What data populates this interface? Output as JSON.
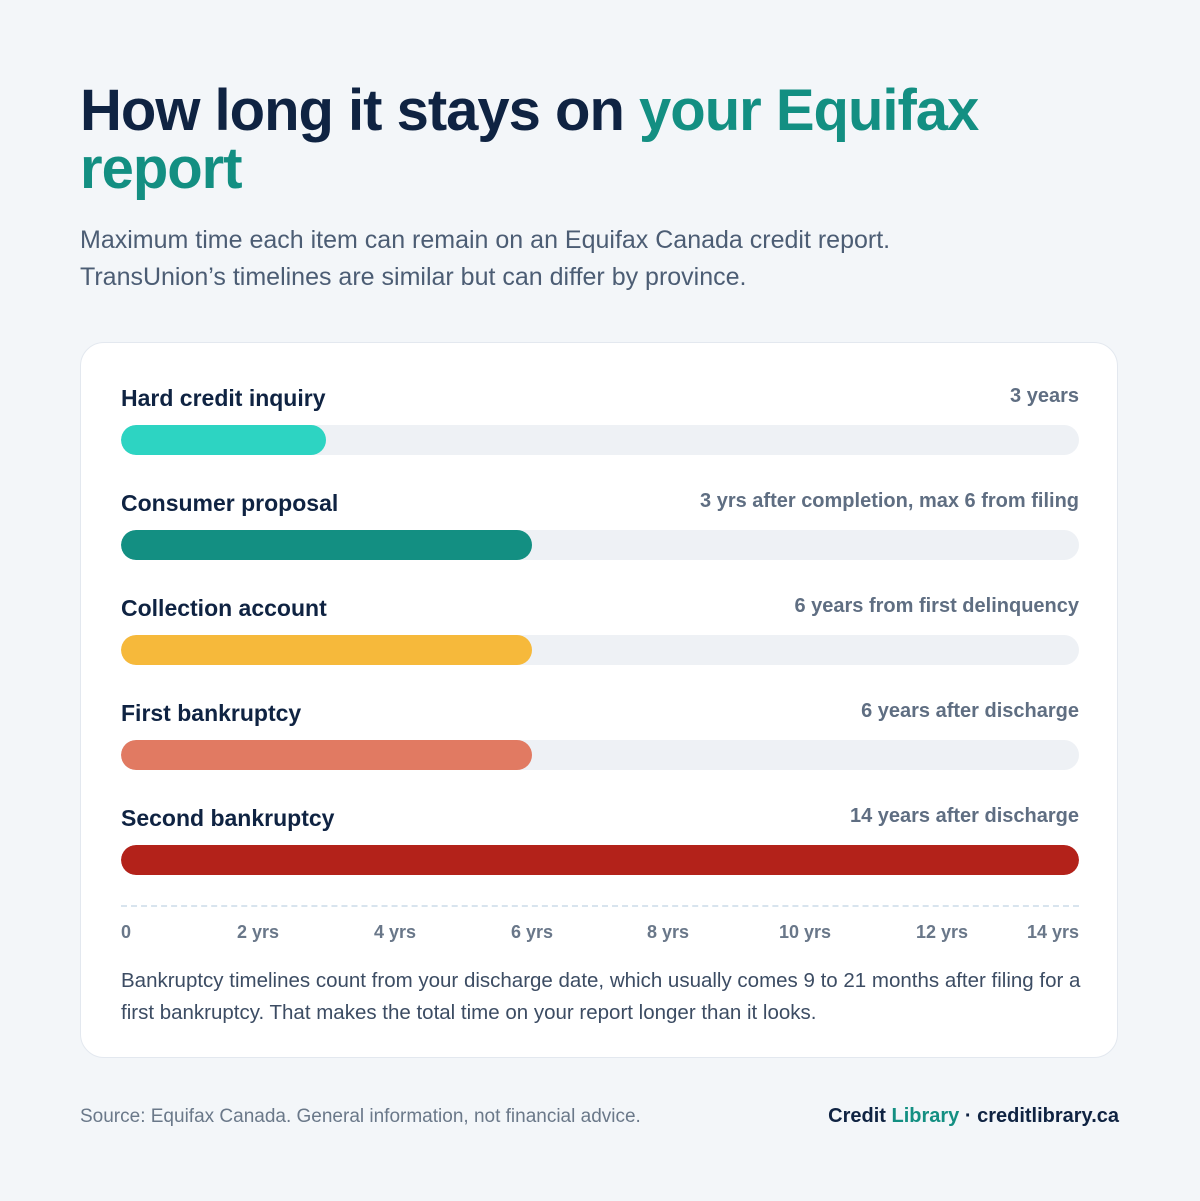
{
  "header": {
    "title_part1": "How long it stays on ",
    "title_accent": "your Equifax report",
    "subtitle_line1": "Maximum time each item can remain on an Equifax Canada credit report.",
    "subtitle_line2": "TransUnion’s timelines are similar but can differ by province."
  },
  "chart_data": {
    "type": "bar",
    "orientation": "horizontal",
    "categories": [
      "Hard credit inquiry",
      "Consumer proposal",
      "Collection account",
      "First bankruptcy",
      "Second bankruptcy"
    ],
    "values": [
      3,
      6,
      6,
      6,
      14
    ],
    "value_labels": [
      "3 years",
      "3 yrs after completion, max 6 from filing",
      "6 years from first delinquency",
      "6 years after discharge",
      "14 years after discharge"
    ],
    "colors": [
      "#2dd4c2",
      "#138f82",
      "#f6b93b",
      "#e17a62",
      "#b3221a"
    ],
    "xlim": [
      0,
      14
    ],
    "x_ticks": [
      0,
      2,
      4,
      6,
      8,
      10,
      12,
      14
    ],
    "x_tick_labels": [
      "0",
      "2 yrs",
      "4 yrs",
      "6 yrs",
      "8 yrs",
      "10 yrs",
      "12 yrs",
      "14 yrs"
    ],
    "grid": false,
    "legend": "none"
  },
  "note": "Bankruptcy timelines count from your discharge date, which usually comes 9 to 21 months after filing for a first bankruptcy. That makes the total time on your report longer than it looks.",
  "footer": {
    "source": "Source: Equifax Canada. General information, not financial advice.",
    "brand_credit": "Credit",
    "brand_library": "Library",
    "brand_sep_site": " · creditlibrary.ca"
  }
}
